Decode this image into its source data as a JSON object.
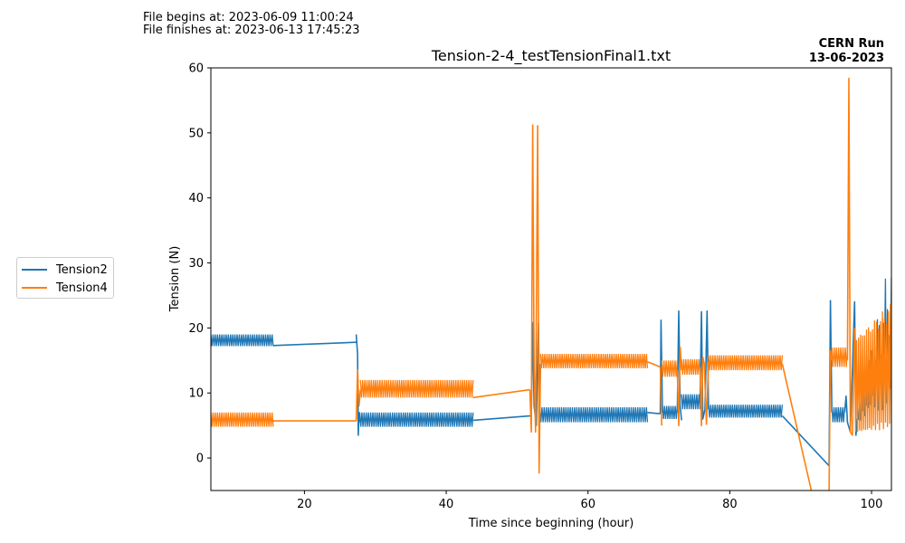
{
  "file_info": {
    "begins": "File begins at: 2023-06-09 11:00:24",
    "finishes": "File finishes at: 2023-06-13 17:45:23"
  },
  "run_label": {
    "line1": "CERN Run",
    "line2": "13-06-2023"
  },
  "chart_data": {
    "type": "line",
    "title": "Tension-2-4_testTensionFinal1.txt",
    "xlabel": "Time since beginning (hour)",
    "ylabel": "Tension (N)",
    "xlim": [
      6.8,
      102.8
    ],
    "ylim": [
      -5,
      60
    ],
    "xticks": [
      20,
      40,
      60,
      80,
      100
    ],
    "yticks": [
      0,
      10,
      20,
      30,
      40,
      50,
      60
    ],
    "grid": false,
    "legend_position": "outside-left",
    "series": [
      {
        "name": "Tension2",
        "color": "#1f77b4",
        "segments": [
          {
            "type": "band",
            "x0": 6.8,
            "x1": 15.6,
            "ylo": 17.2,
            "yhi": 19.0
          },
          {
            "type": "line",
            "x": [
              15.6,
              27.3
            ],
            "y": [
              17.3,
              17.8
            ]
          },
          {
            "type": "line",
            "x": [
              27.3,
              27.5,
              27.6,
              27.7,
              27.8
            ],
            "y": [
              19.0,
              16.0,
              3.5,
              7.0,
              5.5
            ]
          },
          {
            "type": "band",
            "x0": 27.8,
            "x1": 43.8,
            "ylo": 4.8,
            "yhi": 7.0
          },
          {
            "type": "line",
            "x": [
              43.8,
              52.0
            ],
            "y": [
              5.8,
              6.5
            ]
          },
          {
            "type": "line",
            "x": [
              52.0,
              52.2,
              52.4,
              52.7,
              53.0,
              53.2
            ],
            "y": [
              6.5,
              20.8,
              8.0,
              5.0,
              20.7,
              6.0
            ]
          },
          {
            "type": "band",
            "x0": 53.2,
            "x1": 68.4,
            "ylo": 5.5,
            "yhi": 7.8
          },
          {
            "type": "line",
            "x": [
              68.4,
              70.2
            ],
            "y": [
              7.0,
              6.8
            ]
          },
          {
            "type": "line",
            "x": [
              70.2,
              70.3,
              70.5
            ],
            "y": [
              6.8,
              21.2,
              7.0
            ]
          },
          {
            "type": "band",
            "x0": 70.5,
            "x1": 72.6,
            "ylo": 6.0,
            "yhi": 8.0
          },
          {
            "type": "line",
            "x": [
              72.6,
              72.8,
              73.0,
              73.2
            ],
            "y": [
              7.0,
              22.6,
              8.0,
              5.8
            ]
          },
          {
            "type": "band",
            "x0": 73.2,
            "x1": 75.8,
            "ylo": 7.5,
            "yhi": 9.8
          },
          {
            "type": "line",
            "x": [
              75.8,
              76.0,
              76.2,
              76.5,
              76.8,
              77.0
            ],
            "y": [
              8.5,
              22.5,
              6.0,
              7.5,
              22.6,
              7.5
            ]
          },
          {
            "type": "band",
            "x0": 77.0,
            "x1": 87.4,
            "ylo": 6.2,
            "yhi": 8.2
          },
          {
            "type": "line",
            "x": [
              87.4,
              94.0
            ],
            "y": [
              6.5,
              -1.2
            ]
          },
          {
            "type": "line",
            "x": [
              94.0,
              94.2,
              94.4
            ],
            "y": [
              -1.2,
              24.2,
              7.0
            ]
          },
          {
            "type": "band",
            "x0": 94.4,
            "x1": 96.2,
            "ylo": 5.5,
            "yhi": 7.8
          },
          {
            "type": "line",
            "x": [
              96.2,
              96.4,
              96.6,
              97.0,
              97.6,
              97.8,
              98.0
            ],
            "y": [
              7.0,
              9.5,
              5.5,
              4.0,
              24.0,
              3.5,
              6.0
            ]
          },
          {
            "type": "growth",
            "x0": 98.0,
            "x1": 102.8,
            "ylo0": 5.5,
            "yhi0": 7.0,
            "ylo1": 18.0,
            "yhi1": 32.0
          }
        ]
      },
      {
        "name": "Tension4",
        "color": "#ff7f0e",
        "segments": [
          {
            "type": "band",
            "x0": 6.8,
            "x1": 15.6,
            "ylo": 4.8,
            "yhi": 7.0
          },
          {
            "type": "line",
            "x": [
              15.6,
              27.3
            ],
            "y": [
              5.7,
              5.7
            ]
          },
          {
            "type": "line",
            "x": [
              27.3,
              27.5,
              27.7,
              27.9
            ],
            "y": [
              5.7,
              13.5,
              8.0,
              10.5
            ]
          },
          {
            "type": "band",
            "x0": 27.9,
            "x1": 43.8,
            "ylo": 9.3,
            "yhi": 12.0
          },
          {
            "type": "line",
            "x": [
              43.8,
              51.8
            ],
            "y": [
              9.3,
              10.5
            ]
          },
          {
            "type": "line",
            "x": [
              51.8,
              52.0,
              52.2,
              52.4,
              52.6,
              52.9,
              53.1,
              53.3
            ],
            "y": [
              10.5,
              4.0,
              51.2,
              14.0,
              4.0,
              51.1,
              -2.3,
              14.5
            ]
          },
          {
            "type": "band",
            "x0": 53.3,
            "x1": 68.4,
            "ylo": 13.8,
            "yhi": 16.0
          },
          {
            "type": "line",
            "x": [
              68.4,
              70.2
            ],
            "y": [
              14.8,
              14.0
            ]
          },
          {
            "type": "line",
            "x": [
              70.2,
              70.4
            ],
            "y": [
              14.0,
              5.0
            ]
          },
          {
            "type": "band",
            "x0": 70.4,
            "x1": 72.6,
            "ylo": 12.5,
            "yhi": 15.0
          },
          {
            "type": "line",
            "x": [
              72.6,
              72.8,
              73.0,
              73.2
            ],
            "y": [
              13.5,
              5.0,
              17.0,
              13.5
            ]
          },
          {
            "type": "band",
            "x0": 73.2,
            "x1": 75.8,
            "ylo": 12.8,
            "yhi": 15.2
          },
          {
            "type": "line",
            "x": [
              75.8,
              76.0,
              76.2,
              76.4,
              76.7,
              77.0
            ],
            "y": [
              14.0,
              5.0,
              15.5,
              14.5,
              5.2,
              14.8
            ]
          },
          {
            "type": "band",
            "x0": 77.0,
            "x1": 87.4,
            "ylo": 13.5,
            "yhi": 15.8
          },
          {
            "type": "line",
            "x": [
              87.4,
              91.5
            ],
            "y": [
              14.5,
              -5.0
            ]
          },
          {
            "type": "line",
            "x": [
              94.0,
              94.2,
              94.4
            ],
            "y": [
              -5.0,
              16.5,
              15.0
            ]
          },
          {
            "type": "band",
            "x0": 94.4,
            "x1": 96.6,
            "ylo": 14.0,
            "yhi": 17.0
          },
          {
            "type": "line",
            "x": [
              96.6,
              96.8,
              97.0,
              97.3,
              97.6
            ],
            "y": [
              15.0,
              58.4,
              4.0,
              3.5,
              20.0
            ]
          },
          {
            "type": "growth",
            "x0": 97.6,
            "x1": 102.8,
            "ylo0": 4.0,
            "yhi0": 18.0,
            "ylo1": 6.0,
            "yhi1": 24.0
          }
        ]
      }
    ]
  }
}
